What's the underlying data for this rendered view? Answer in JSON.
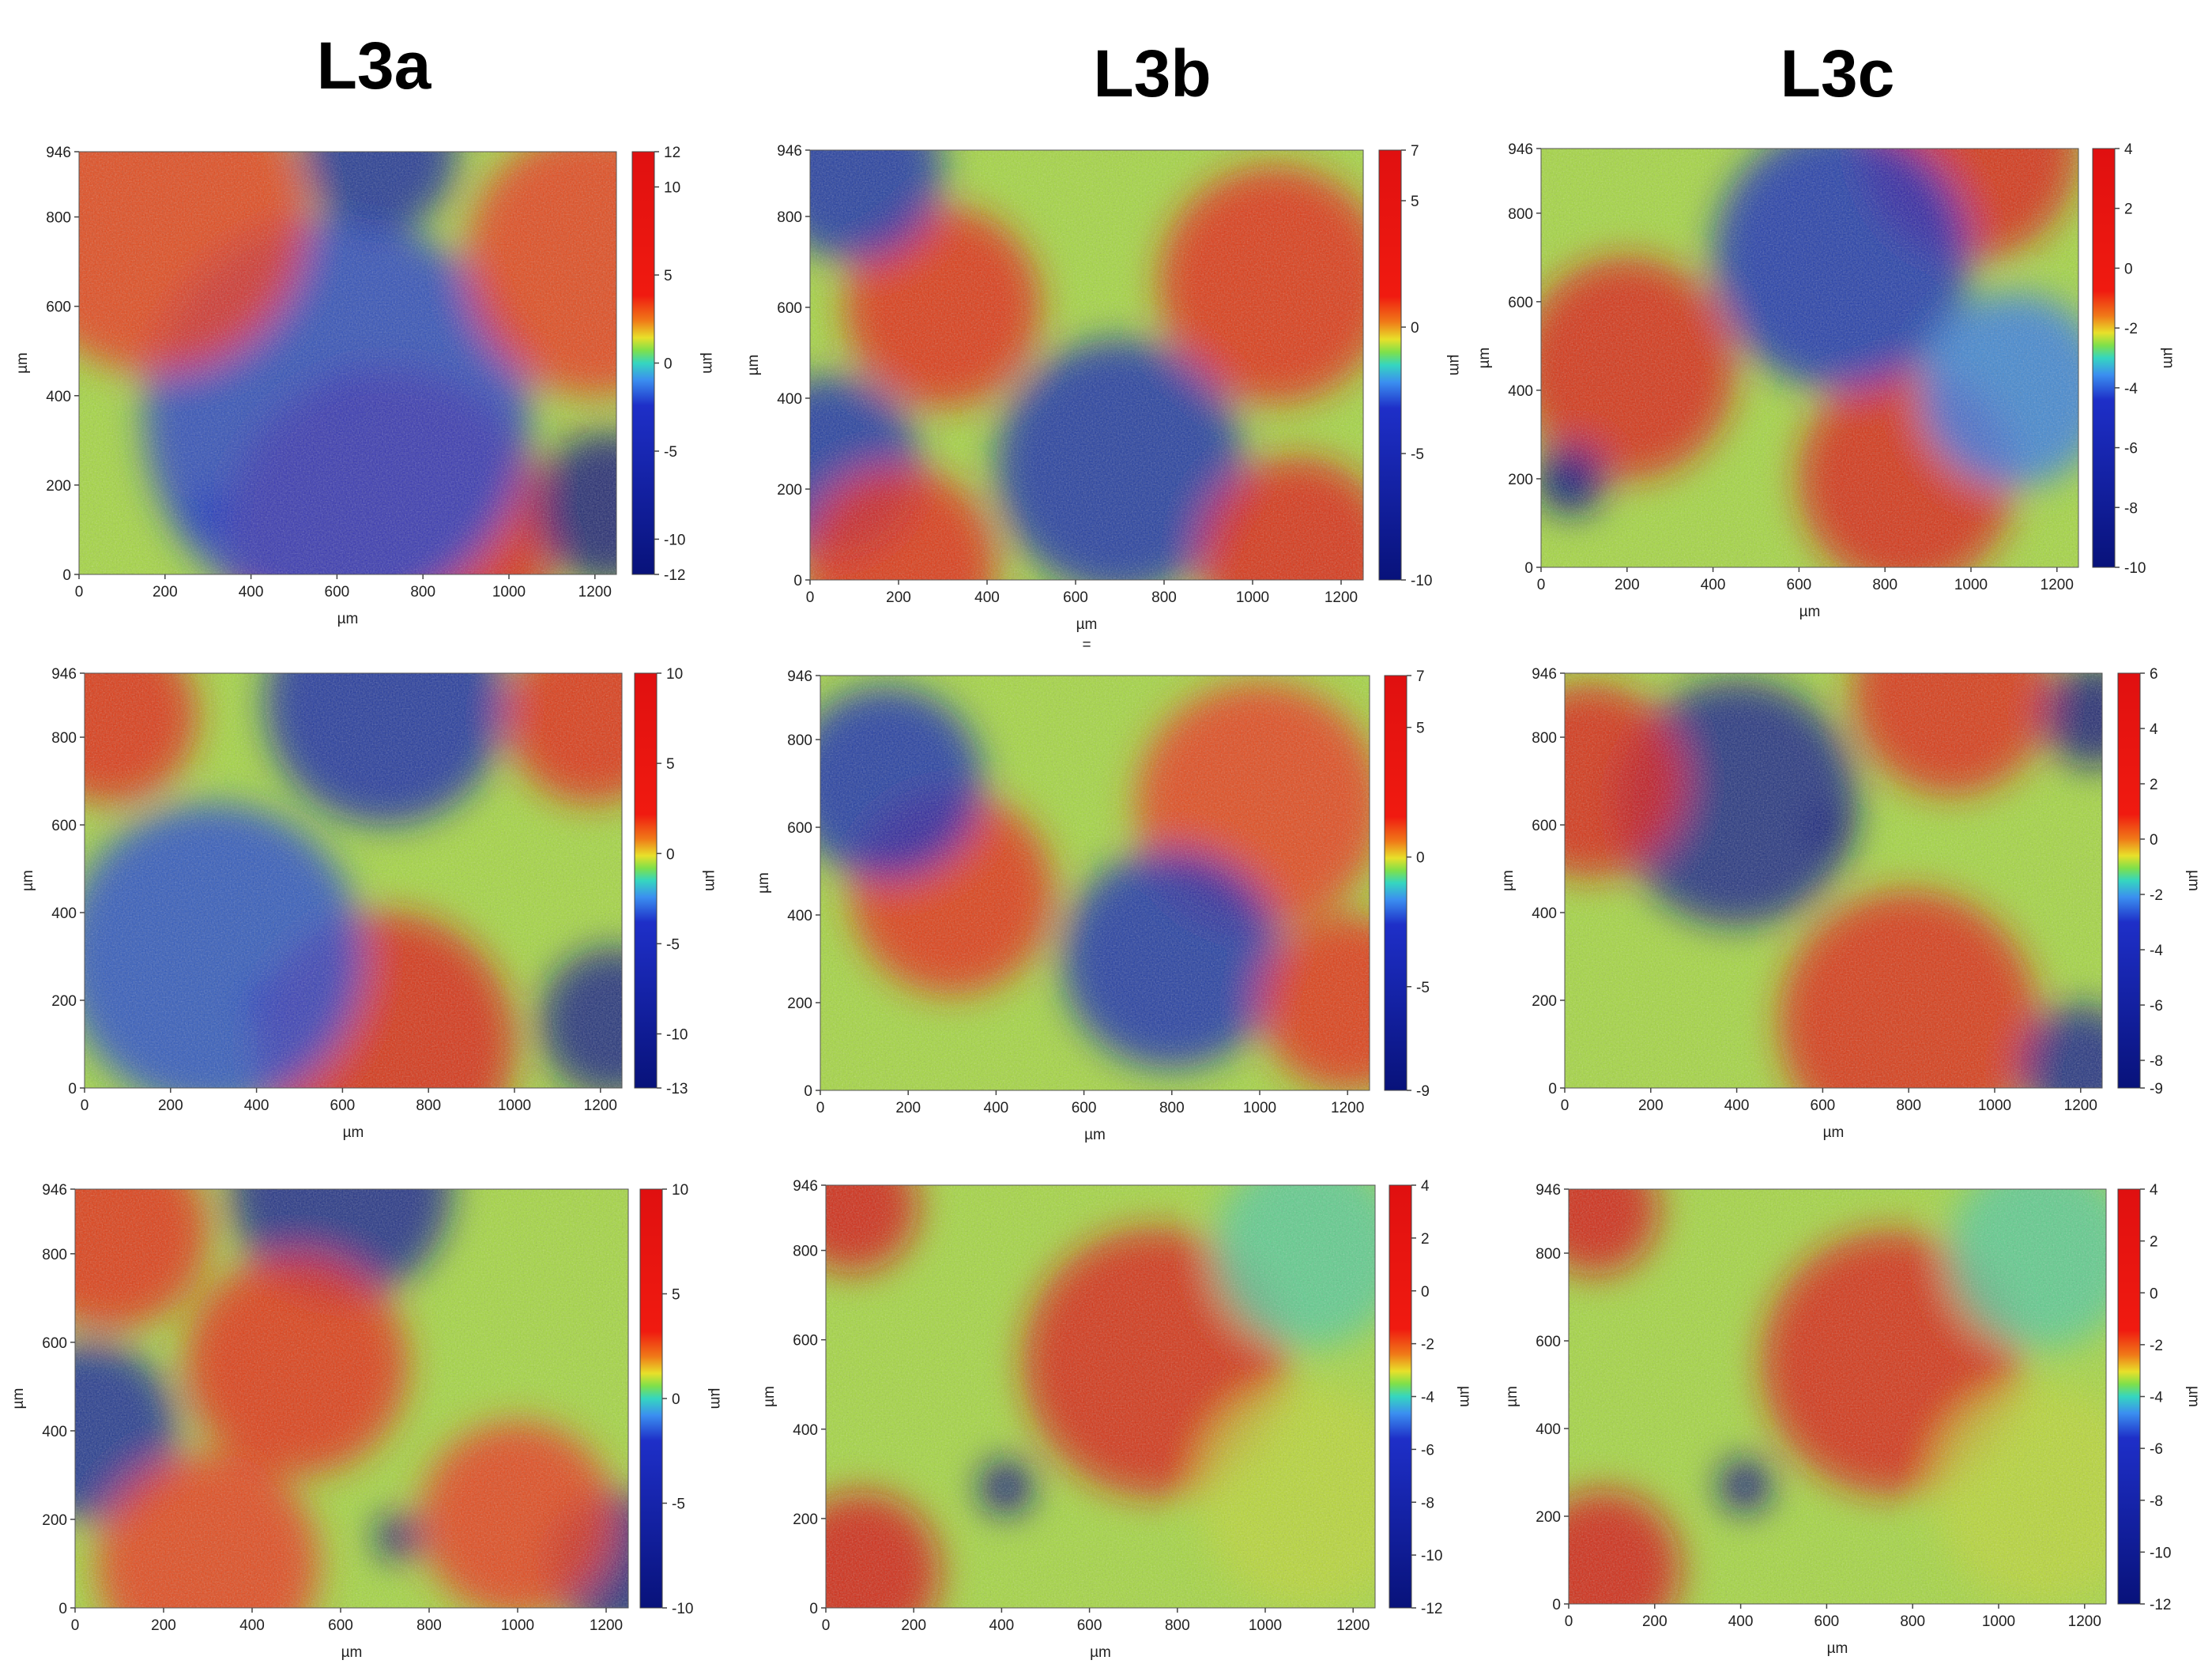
{
  "titles": [
    "L3a",
    "L3b",
    "L3c"
  ],
  "chart_data": [
    {
      "type": "heatmap",
      "column": "L3a",
      "row": 1,
      "xlabel": "µm",
      "ylabel": "µm",
      "zlabel": "µm",
      "xlim": [
        0,
        1250
      ],
      "ylim": [
        0,
        946
      ],
      "xticks": [
        "0",
        "200",
        "400",
        "600",
        "800",
        "1000",
        "1200"
      ],
      "yticks": [
        "0",
        "200",
        "400",
        "600",
        "800",
        "946"
      ],
      "zlim": [
        -12,
        12
      ],
      "zticks": [
        "12",
        "10",
        "5",
        "0",
        "-5",
        "-10",
        "-12"
      ],
      "note": "",
      "features": [
        {
          "x": 620,
          "y": 400,
          "z": -12,
          "r": 55
        },
        {
          "x": 300,
          "y": 130,
          "z": -12,
          "r": 55
        },
        {
          "x": 720,
          "y": 80,
          "z": 10,
          "r": 380
        },
        {
          "x": 1230,
          "y": 150,
          "z": -12,
          "r": 170
        },
        {
          "x": 600,
          "y": 350,
          "z": -4,
          "r": 450
        },
        {
          "x": 180,
          "y": 800,
          "z": 6,
          "r": 350
        },
        {
          "x": 1200,
          "y": 700,
          "z": 6,
          "r": 300
        },
        {
          "x": 700,
          "y": 946,
          "z": -8,
          "r": 180
        }
      ]
    },
    {
      "type": "heatmap",
      "column": "L3b",
      "row": 1,
      "xlabel": "µm",
      "ylabel": "µm",
      "zlabel": "µm",
      "xlim": [
        0,
        1250
      ],
      "ylim": [
        0,
        946
      ],
      "xticks": [
        "0",
        "200",
        "400",
        "600",
        "800",
        "1000",
        "1200"
      ],
      "yticks": [
        "0",
        "200",
        "400",
        "600",
        "800",
        "946"
      ],
      "zlim": [
        -10,
        7
      ],
      "zticks": [
        "7",
        "5",
        "0",
        "-5",
        "-10"
      ],
      "note": "=",
      "features": [
        {
          "x": 300,
          "y": 600,
          "z": 4,
          "r": 220
        },
        {
          "x": 1050,
          "y": 650,
          "z": 4,
          "r": 260
        },
        {
          "x": 700,
          "y": 250,
          "z": -6,
          "r": 280
        },
        {
          "x": 100,
          "y": 900,
          "z": -6,
          "r": 200
        },
        {
          "x": 50,
          "y": 250,
          "z": -6,
          "r": 200
        },
        {
          "x": 1100,
          "y": 50,
          "z": 5,
          "r": 220
        },
        {
          "x": 200,
          "y": 30,
          "z": 4,
          "r": 220
        }
      ]
    },
    {
      "type": "heatmap",
      "column": "L3c",
      "row": 1,
      "xlabel": "µm",
      "ylabel": "µm",
      "zlabel": "µm",
      "xlim": [
        0,
        1250
      ],
      "ylim": [
        0,
        946
      ],
      "xticks": [
        "0",
        "200",
        "400",
        "600",
        "800",
        "1000",
        "1200"
      ],
      "yticks": [
        "0",
        "200",
        "400",
        "600",
        "800",
        "946"
      ],
      "zlim": [
        -10,
        4
      ],
      "zticks": [
        "4",
        "2",
        "0",
        "-2",
        "-4",
        "-6",
        "-8",
        "-10"
      ],
      "note": "",
      "features": [
        {
          "x": 200,
          "y": 450,
          "z": 3,
          "r": 250
        },
        {
          "x": 1000,
          "y": 946,
          "z": 3,
          "r": 250
        },
        {
          "x": 850,
          "y": 200,
          "z": 3,
          "r": 250
        },
        {
          "x": 70,
          "y": 200,
          "z": -10,
          "r": 80
        },
        {
          "x": 700,
          "y": 700,
          "z": -6,
          "r": 300
        },
        {
          "x": 1100,
          "y": 400,
          "z": -4,
          "r": 220
        }
      ]
    },
    {
      "type": "heatmap",
      "column": "L3a",
      "row": 2,
      "xlabel": "µm",
      "ylabel": "µm",
      "zlabel": "µm",
      "xlim": [
        0,
        1250
      ],
      "ylim": [
        0,
        946
      ],
      "xticks": [
        "0",
        "200",
        "400",
        "600",
        "800",
        "1000",
        "1200"
      ],
      "yticks": [
        "0",
        "200",
        "400",
        "600",
        "800",
        "946"
      ],
      "zlim": [
        -13,
        10
      ],
      "zticks": [
        "10",
        "5",
        "0",
        "-5",
        "-10",
        "-13"
      ],
      "note": "",
      "features": [
        {
          "x": 430,
          "y": 190,
          "z": -13,
          "r": 55
        },
        {
          "x": 700,
          "y": 100,
          "z": 8,
          "r": 300
        },
        {
          "x": 1230,
          "y": 150,
          "z": -12,
          "r": 170
        },
        {
          "x": 700,
          "y": 880,
          "z": -8,
          "r": 280
        },
        {
          "x": 300,
          "y": 300,
          "z": -5,
          "r": 350
        },
        {
          "x": 60,
          "y": 850,
          "z": 6,
          "r": 200
        },
        {
          "x": 1180,
          "y": 850,
          "z": 6,
          "r": 200
        }
      ]
    },
    {
      "type": "heatmap",
      "column": "L3b",
      "row": 2,
      "xlabel": "µm",
      "ylabel": "µm",
      "zlabel": "",
      "xlim": [
        0,
        1250
      ],
      "ylim": [
        0,
        946
      ],
      "xticks": [
        "0",
        "200",
        "400",
        "600",
        "800",
        "1000",
        "1200"
      ],
      "yticks": [
        "0",
        "200",
        "400",
        "600",
        "800",
        "946"
      ],
      "zlim": [
        -9,
        7
      ],
      "zticks": [
        "7",
        "5",
        "0",
        "-5",
        "-9"
      ],
      "note": "",
      "features": [
        {
          "x": 300,
          "y": 450,
          "z": 4,
          "r": 230
        },
        {
          "x": 1000,
          "y": 650,
          "z": 3,
          "r": 280
        },
        {
          "x": 800,
          "y": 300,
          "z": -5,
          "r": 250
        },
        {
          "x": 150,
          "y": 700,
          "z": -5,
          "r": 220
        },
        {
          "x": 1200,
          "y": 200,
          "z": 4,
          "r": 200
        }
      ]
    },
    {
      "type": "heatmap",
      "column": "L3c",
      "row": 2,
      "xlabel": "µm",
      "ylabel": "µm",
      "zlabel": "µm",
      "xlim": [
        0,
        1250
      ],
      "ylim": [
        0,
        946
      ],
      "xticks": [
        "0",
        "200",
        "400",
        "600",
        "800",
        "1000",
        "1200"
      ],
      "yticks": [
        "0",
        "200",
        "400",
        "600",
        "800",
        "946"
      ],
      "zlim": [
        -9,
        6
      ],
      "zticks": [
        "6",
        "4",
        "2",
        "0",
        "-2",
        "-4",
        "-6",
        "-8",
        "-9"
      ],
      "note": "",
      "features": [
        {
          "x": 400,
          "y": 650,
          "z": -8,
          "r": 280
        },
        {
          "x": 620,
          "y": 590,
          "z": -9,
          "r": 50
        },
        {
          "x": 60,
          "y": 700,
          "z": 5,
          "r": 220
        },
        {
          "x": 800,
          "y": 150,
          "z": 4,
          "r": 300
        },
        {
          "x": 900,
          "y": 900,
          "z": 4,
          "r": 230
        },
        {
          "x": 1230,
          "y": 850,
          "z": -9,
          "r": 120
        },
        {
          "x": 1200,
          "y": 50,
          "z": -8,
          "r": 140
        }
      ]
    },
    {
      "type": "heatmap",
      "column": "L3a",
      "row": 3,
      "xlabel": "µm",
      "ylabel": "µm",
      "zlabel": "µm",
      "xlim": [
        0,
        1250
      ],
      "ylim": [
        0,
        946
      ],
      "xticks": [
        "0",
        "200",
        "400",
        "600",
        "800",
        "1000",
        "1200"
      ],
      "yticks": [
        "0",
        "200",
        "400",
        "600",
        "800",
        "946"
      ],
      "zlim": [
        -10,
        10
      ],
      "zticks": [
        "10",
        "5",
        "0",
        "-5",
        "-10"
      ],
      "note": "",
      "features": [
        {
          "x": 730,
          "y": 160,
          "z": -10,
          "r": 50
        },
        {
          "x": 600,
          "y": 946,
          "z": -8,
          "r": 250
        },
        {
          "x": 30,
          "y": 400,
          "z": -7,
          "r": 200
        },
        {
          "x": 1230,
          "y": 100,
          "z": -9,
          "r": 160
        },
        {
          "x": 500,
          "y": 550,
          "z": 6,
          "r": 250
        },
        {
          "x": 80,
          "y": 850,
          "z": 6,
          "r": 220
        },
        {
          "x": 300,
          "y": 100,
          "z": 5,
          "r": 250
        },
        {
          "x": 1000,
          "y": 200,
          "z": 5,
          "r": 220
        }
      ]
    },
    {
      "type": "heatmap",
      "column": "L3b",
      "row": 3,
      "xlabel": "µm",
      "ylabel": "µm",
      "zlabel": "µm",
      "xlim": [
        0,
        1250
      ],
      "ylim": [
        0,
        946
      ],
      "xticks": [
        "0",
        "200",
        "400",
        "600",
        "800",
        "1000",
        "1200"
      ],
      "yticks": [
        "0",
        "200",
        "400",
        "600",
        "800",
        "946"
      ],
      "zlim": [
        -12,
        4
      ],
      "zticks": [
        "4",
        "2",
        "0",
        "-2",
        "-4",
        "-6",
        "-8",
        "-10",
        "-12"
      ],
      "note": "",
      "features": [
        {
          "x": 410,
          "y": 270,
          "z": -12,
          "r": 60
        },
        {
          "x": 750,
          "y": 550,
          "z": 3,
          "r": 300
        },
        {
          "x": 60,
          "y": 900,
          "z": 4,
          "r": 150
        },
        {
          "x": 80,
          "y": 80,
          "z": 4,
          "r": 180
        },
        {
          "x": 1100,
          "y": 800,
          "z": -4,
          "r": 220
        },
        {
          "x": 1100,
          "y": 250,
          "z": -3,
          "r": 250
        }
      ]
    },
    {
      "type": "heatmap",
      "column": "L3c",
      "row": 3,
      "xlabel": "µm",
      "ylabel": "µm",
      "zlabel": "µm",
      "xlim": [
        0,
        1250
      ],
      "ylim": [
        0,
        946
      ],
      "xticks": [
        "0",
        "200",
        "400",
        "600",
        "800",
        "1000",
        "1200"
      ],
      "yticks": [
        "0",
        "200",
        "400",
        "600",
        "800",
        "946"
      ],
      "zlim": [
        -12,
        4
      ],
      "zticks": [
        "4",
        "2",
        "0",
        "-2",
        "-4",
        "-6",
        "-8",
        "-10",
        "-12"
      ],
      "note": "",
      "features": [
        {
          "x": 410,
          "y": 270,
          "z": -12,
          "r": 60
        },
        {
          "x": 750,
          "y": 550,
          "z": 3,
          "r": 300
        },
        {
          "x": 60,
          "y": 900,
          "z": 4,
          "r": 150
        },
        {
          "x": 80,
          "y": 80,
          "z": 4,
          "r": 180
        },
        {
          "x": 1100,
          "y": 800,
          "z": -4,
          "r": 220
        },
        {
          "x": 1100,
          "y": 250,
          "z": -3,
          "r": 250
        }
      ]
    }
  ]
}
